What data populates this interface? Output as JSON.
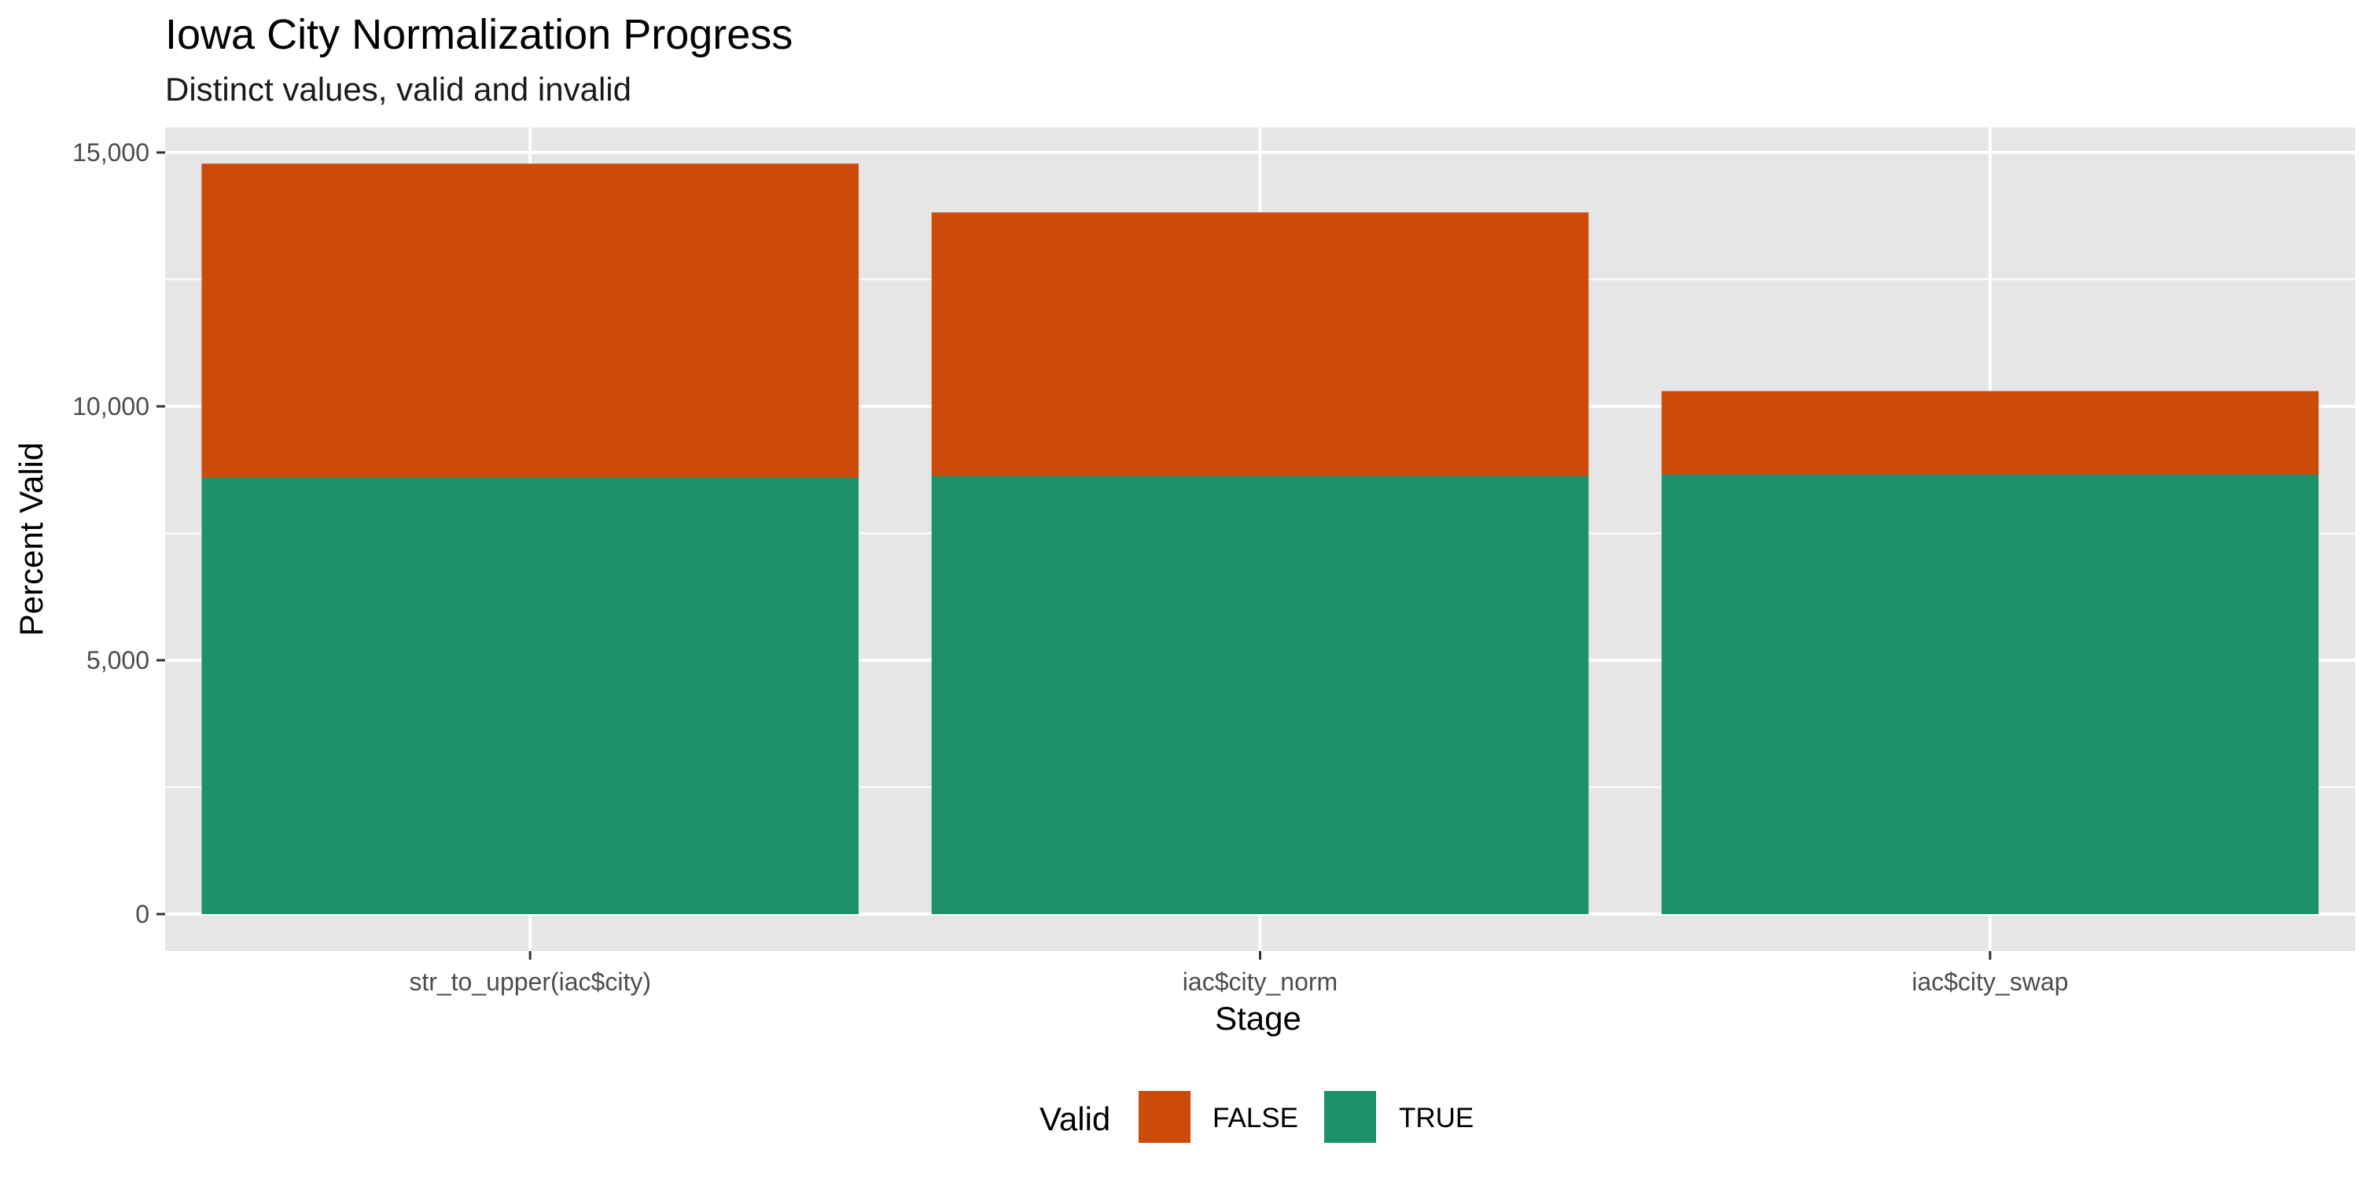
{
  "chart_data": {
    "type": "bar",
    "stacked": true,
    "title": "Iowa City Normalization Progress",
    "subtitle": "Distinct values, valid and invalid",
    "xlabel": "Stage",
    "ylabel": "Percent Valid",
    "categories": [
      "str_to_upper(iac$city)",
      "iac$city_norm",
      "iac$city_swap"
    ],
    "series": [
      {
        "name": "TRUE",
        "color": "#1E916A",
        "values": [
          8600,
          8630,
          8660
        ]
      },
      {
        "name": "FALSE",
        "color": "#CC4A0A",
        "values": [
          6180,
          5190,
          1640
        ]
      }
    ],
    "ylim": [
      0,
      15000
    ],
    "yticks": [
      0,
      5000,
      10000,
      15000
    ],
    "ytick_labels": [
      "0",
      "5,000",
      "10,000",
      "15,000"
    ],
    "legend": {
      "title": "Valid",
      "position": "bottom",
      "entries": [
        {
          "label": "FALSE",
          "color": "#CC4A0A"
        },
        {
          "label": "TRUE",
          "color": "#1E916A"
        }
      ]
    },
    "grid": true,
    "panel_background": "#E6E6E6"
  }
}
